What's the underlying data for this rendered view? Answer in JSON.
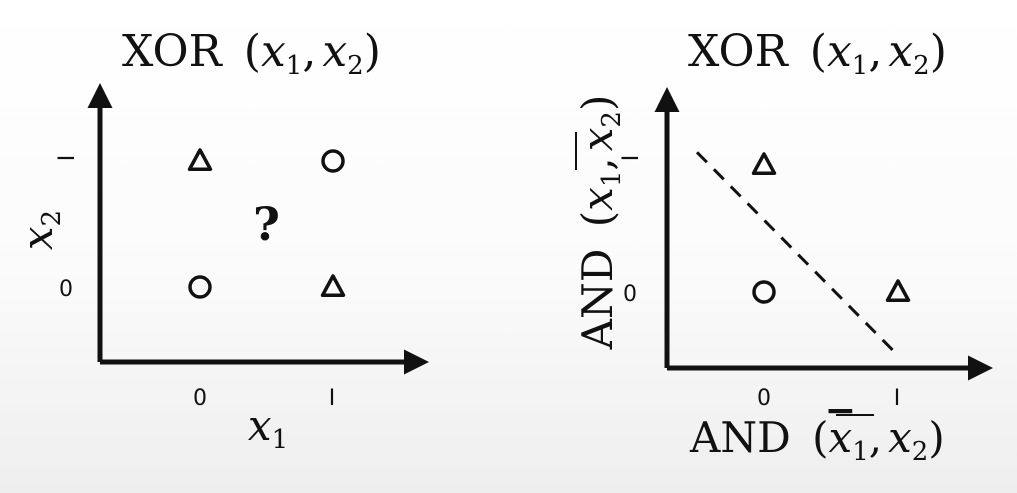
{
  "chart_data": [
    {
      "type": "scatter",
      "title": "XOR (x1, x2)",
      "title_parts": {
        "fn": "XOR",
        "open": "(",
        "v1": "x",
        "s1": "1",
        "comma": ",",
        "v2": "x",
        "s2": "2",
        "close": ")"
      },
      "xlabel": "x1",
      "xlabel_parts": {
        "v": "x",
        "s": "1"
      },
      "ylabel": "x2",
      "ylabel_parts": {
        "v": "x",
        "s": "2"
      },
      "x_ticks": [
        "0",
        "I"
      ],
      "y_ticks": [
        "0",
        "I"
      ],
      "xlim": [
        -0.7,
        1.7
      ],
      "ylim": [
        -0.6,
        1.6
      ],
      "series": [
        {
          "name": "circle",
          "marker": "circle",
          "points": [
            [
              0,
              0
            ],
            [
              1,
              1
            ]
          ]
        },
        {
          "name": "triangle",
          "marker": "triangle",
          "points": [
            [
              0,
              1
            ],
            [
              1,
              0
            ]
          ]
        }
      ],
      "annotation": {
        "text": "?",
        "x": 0.5,
        "y": 0.5
      }
    },
    {
      "type": "scatter",
      "title": "XOR (x1, x2)",
      "title_parts": {
        "fn": "XOR",
        "open": "(",
        "v1": "x",
        "s1": "1",
        "comma": ",",
        "v2": "x",
        "s2": "2",
        "close": ")"
      },
      "xlabel": "AND (x̄1, x2)",
      "xlabel_parts": {
        "fn": "AND",
        "open": "(",
        "v1": "x",
        "s1": "1",
        "comma": ",",
        "v2": "x",
        "s2": "2",
        "close": ")"
      },
      "ylabel": "AND (x1, x̄2)",
      "ylabel_parts": {
        "fn": "AND",
        "open": "(",
        "v1": "x",
        "s1": "1",
        "comma": ",",
        "v2": "x",
        "s2": "2",
        "close": ")"
      },
      "x_ticks": [
        "0",
        "I"
      ],
      "y_ticks": [
        "0",
        "I"
      ],
      "xlim": [
        -0.7,
        1.7
      ],
      "ylim": [
        -0.6,
        1.6
      ],
      "series": [
        {
          "name": "circle",
          "marker": "circle",
          "points": [
            [
              0,
              0
            ]
          ]
        },
        {
          "name": "triangle",
          "marker": "triangle",
          "points": [
            [
              0,
              1
            ],
            [
              1,
              0
            ]
          ]
        }
      ],
      "decision_boundary": {
        "style": "dashed",
        "from": [
          -0.5,
          1.1
        ],
        "to": [
          1.0,
          -0.5
        ]
      }
    }
  ]
}
